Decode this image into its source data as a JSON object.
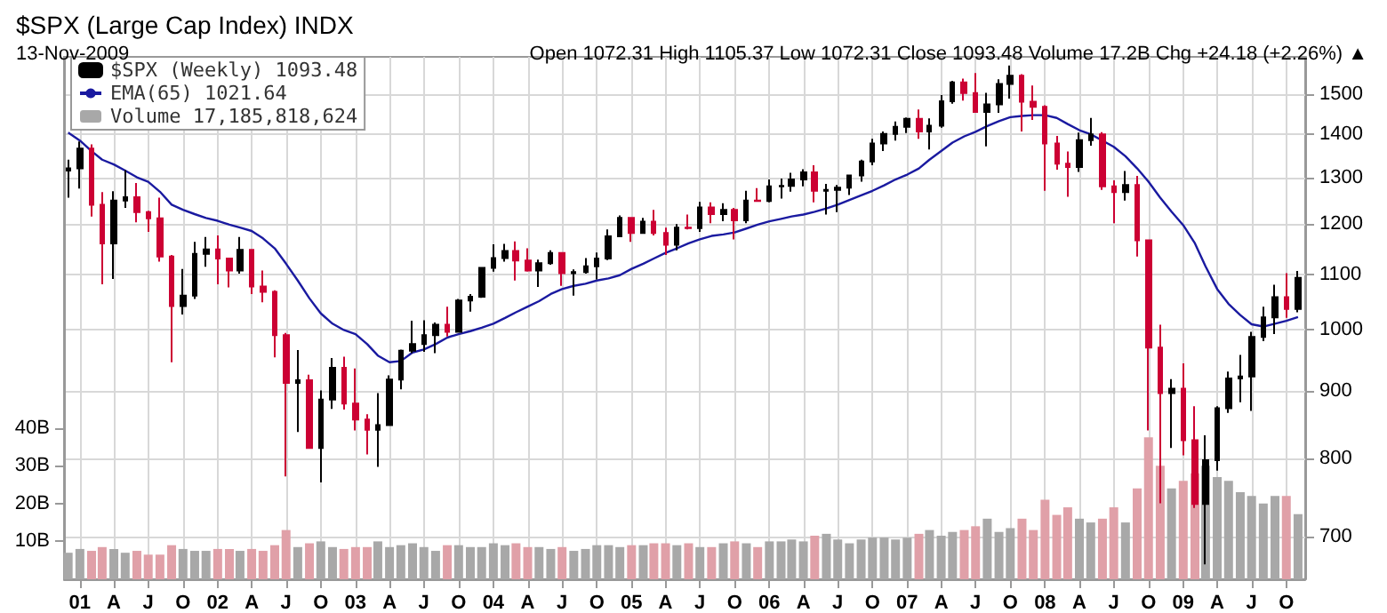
{
  "chart_data": {
    "type": "candlestick",
    "title": "$SPX (Large Cap Index) INDX",
    "subtitle": "13-Nov-2009",
    "annotations": [
      "Open 1072.31 High 1105.37 Low 1072.31 Close 1093.48 Volume 17.2B Chg +24.18 (+2.26%) ▲"
    ],
    "x": [
      "2000-12",
      "2001-01",
      "2001-02",
      "2001-03",
      "2001-04",
      "2001-05",
      "2001-06",
      "2001-07",
      "2001-08",
      "2001-09",
      "2001-10",
      "2001-11",
      "2001-12",
      "2002-01",
      "2002-02",
      "2002-03",
      "2002-04",
      "2002-05",
      "2002-06",
      "2002-07",
      "2002-08",
      "2002-09",
      "2002-10",
      "2002-11",
      "2002-12",
      "2003-01",
      "2003-02",
      "2003-03",
      "2003-04",
      "2003-05",
      "2003-06",
      "2003-07",
      "2003-08",
      "2003-09",
      "2003-10",
      "2003-11",
      "2003-12",
      "2004-01",
      "2004-02",
      "2004-03",
      "2004-04",
      "2004-05",
      "2004-06",
      "2004-07",
      "2004-08",
      "2004-09",
      "2004-10",
      "2004-11",
      "2004-12",
      "2005-01",
      "2005-02",
      "2005-03",
      "2005-04",
      "2005-05",
      "2005-06",
      "2005-07",
      "2005-08",
      "2005-09",
      "2005-10",
      "2005-11",
      "2005-12",
      "2006-01",
      "2006-02",
      "2006-03",
      "2006-04",
      "2006-05",
      "2006-06",
      "2006-07",
      "2006-08",
      "2006-09",
      "2006-10",
      "2006-11",
      "2006-12",
      "2007-01",
      "2007-02",
      "2007-03",
      "2007-04",
      "2007-05",
      "2007-06",
      "2007-07",
      "2007-08",
      "2007-09",
      "2007-10",
      "2007-11",
      "2007-12",
      "2008-01",
      "2008-02",
      "2008-03",
      "2008-04",
      "2008-05",
      "2008-06",
      "2008-07",
      "2008-08",
      "2008-09",
      "2008-10",
      "2008-11",
      "2008-12",
      "2009-01",
      "2009-02",
      "2009-03",
      "2009-04",
      "2009-05",
      "2009-06",
      "2009-07",
      "2009-08",
      "2009-09",
      "2009-10",
      "2009-11"
    ],
    "series": [
      {
        "name": "$SPX (Weekly) 1093.48",
        "ohlc": [
          [
            1315,
            1340,
            1255,
            1320
          ],
          [
            1320,
            1383,
            1275,
            1366
          ],
          [
            1366,
            1376,
            1215,
            1240
          ],
          [
            1240,
            1267,
            1081,
            1160
          ],
          [
            1160,
            1269,
            1091,
            1249
          ],
          [
            1249,
            1316,
            1233,
            1256
          ],
          [
            1256,
            1287,
            1203,
            1224
          ],
          [
            1224,
            1227,
            1183,
            1211
          ],
          [
            1211,
            1255,
            1124,
            1134
          ],
          [
            1134,
            1137,
            945,
            1041
          ],
          [
            1041,
            1110,
            1026,
            1060
          ],
          [
            1060,
            1163,
            1054,
            1139
          ],
          [
            1139,
            1173,
            1114,
            1148
          ],
          [
            1148,
            1176,
            1081,
            1130
          ],
          [
            1130,
            1131,
            1075,
            1107
          ],
          [
            1107,
            1173,
            1101,
            1147
          ],
          [
            1147,
            1147,
            1063,
            1077
          ],
          [
            1077,
            1107,
            1048,
            1067
          ],
          [
            1067,
            1070,
            953,
            990
          ],
          [
            990,
            994,
            776,
            912
          ],
          [
            912,
            965,
            838,
            916
          ],
          [
            916,
            925,
            815,
            815
          ],
          [
            815,
            900,
            768,
            886
          ],
          [
            886,
            952,
            872,
            936
          ],
          [
            936,
            954,
            871,
            880
          ],
          [
            880,
            935,
            840,
            856
          ],
          [
            856,
            864,
            806,
            841
          ],
          [
            841,
            896,
            789,
            848
          ],
          [
            848,
            924,
            847,
            917
          ],
          [
            917,
            966,
            902,
            964
          ],
          [
            964,
            1015,
            960,
            975
          ],
          [
            975,
            1016,
            962,
            990
          ],
          [
            990,
            1012,
            960,
            1008
          ],
          [
            1008,
            1040,
            988,
            996
          ],
          [
            996,
            1054,
            996,
            1051
          ],
          [
            1051,
            1063,
            1031,
            1058
          ],
          [
            1058,
            1112,
            1056,
            1112
          ],
          [
            1112,
            1158,
            1105,
            1131
          ],
          [
            1131,
            1159,
            1124,
            1145
          ],
          [
            1145,
            1164,
            1088,
            1126
          ],
          [
            1126,
            1150,
            1105,
            1107
          ],
          [
            1107,
            1128,
            1076,
            1121
          ],
          [
            1121,
            1146,
            1118,
            1141
          ],
          [
            1141,
            1141,
            1078,
            1102
          ],
          [
            1102,
            1109,
            1060,
            1104
          ],
          [
            1104,
            1131,
            1101,
            1115
          ],
          [
            1115,
            1142,
            1090,
            1130
          ],
          [
            1130,
            1188,
            1127,
            1174
          ],
          [
            1174,
            1217,
            1173,
            1212
          ],
          [
            1212,
            1212,
            1163,
            1181
          ],
          [
            1181,
            1212,
            1180,
            1204
          ],
          [
            1204,
            1229,
            1176,
            1181
          ],
          [
            1181,
            1192,
            1137,
            1157
          ],
          [
            1157,
            1199,
            1146,
            1192
          ],
          [
            1192,
            1219,
            1188,
            1191
          ],
          [
            1191,
            1246,
            1183,
            1234
          ],
          [
            1234,
            1245,
            1201,
            1220
          ],
          [
            1220,
            1243,
            1205,
            1229
          ],
          [
            1229,
            1233,
            1168,
            1207
          ],
          [
            1207,
            1270,
            1201,
            1249
          ],
          [
            1249,
            1276,
            1246,
            1248
          ],
          [
            1248,
            1295,
            1245,
            1280
          ],
          [
            1280,
            1297,
            1253,
            1281
          ],
          [
            1281,
            1310,
            1268,
            1295
          ],
          [
            1295,
            1318,
            1280,
            1311
          ],
          [
            1311,
            1327,
            1245,
            1270
          ],
          [
            1270,
            1285,
            1219,
            1272
          ],
          [
            1272,
            1283,
            1224,
            1277
          ],
          [
            1277,
            1306,
            1261,
            1304
          ],
          [
            1304,
            1340,
            1290,
            1336
          ],
          [
            1336,
            1389,
            1327,
            1378
          ],
          [
            1378,
            1407,
            1360,
            1401
          ],
          [
            1401,
            1431,
            1385,
            1418
          ],
          [
            1418,
            1441,
            1403,
            1438
          ],
          [
            1438,
            1461,
            1389,
            1407
          ],
          [
            1407,
            1439,
            1364,
            1421
          ],
          [
            1421,
            1498,
            1416,
            1482
          ],
          [
            1482,
            1535,
            1476,
            1531
          ],
          [
            1531,
            1541,
            1484,
            1503
          ],
          [
            1503,
            1556,
            1454,
            1455
          ],
          [
            1455,
            1504,
            1371,
            1474
          ],
          [
            1474,
            1539,
            1453,
            1527
          ],
          [
            1527,
            1576,
            1489,
            1549
          ],
          [
            1549,
            1553,
            1407,
            1481
          ],
          [
            1481,
            1523,
            1435,
            1468
          ],
          [
            1468,
            1472,
            1270,
            1378
          ],
          [
            1378,
            1396,
            1317,
            1331
          ],
          [
            1331,
            1359,
            1257,
            1323
          ],
          [
            1323,
            1404,
            1312,
            1386
          ],
          [
            1386,
            1440,
            1373,
            1400
          ],
          [
            1400,
            1405,
            1272,
            1280
          ],
          [
            1280,
            1293,
            1201,
            1267
          ],
          [
            1267,
            1314,
            1249,
            1283
          ],
          [
            1283,
            1303,
            1134,
            1166
          ],
          [
            1166,
            1168,
            840,
            969
          ],
          [
            969,
            1008,
            741,
            896
          ],
          [
            896,
            918,
            815,
            903
          ],
          [
            903,
            943,
            805,
            826
          ],
          [
            826,
            876,
            735,
            740
          ],
          [
            740,
            833,
            667,
            798
          ],
          [
            798,
            876,
            784,
            873
          ],
          [
            873,
            930,
            866,
            919
          ],
          [
            919,
            957,
            882,
            922
          ],
          [
            922,
            996,
            869,
            987
          ],
          [
            987,
            1040,
            980,
            1021
          ],
          [
            1021,
            1080,
            992,
            1057
          ],
          [
            1057,
            1102,
            1020,
            1036
          ],
          [
            1036,
            1106,
            1030,
            1093
          ]
        ],
        "colors": [
          "#000000",
          "#000000",
          "#cc0033",
          "#cc0033",
          "#000000",
          "#000000",
          "#cc0033",
          "#cc0033",
          "#cc0033",
          "#cc0033",
          "#000000",
          "#000000",
          "#000000",
          "#cc0033",
          "#cc0033",
          "#000000",
          "#cc0033",
          "#cc0033",
          "#cc0033",
          "#cc0033",
          "#000000",
          "#cc0033",
          "#000000",
          "#000000",
          "#cc0033",
          "#cc0033",
          "#cc0033",
          "#000000",
          "#000000",
          "#000000",
          "#000000",
          "#000000",
          "#000000",
          "#cc0033",
          "#000000",
          "#000000",
          "#000000",
          "#000000",
          "#000000",
          "#cc0033",
          "#cc0033",
          "#000000",
          "#000000",
          "#cc0033",
          "#000000",
          "#000000",
          "#000000",
          "#000000",
          "#000000",
          "#cc0033",
          "#000000",
          "#cc0033",
          "#cc0033",
          "#000000",
          "#cc0033",
          "#000000",
          "#cc0033",
          "#000000",
          "#cc0033",
          "#000000",
          "#cc0033",
          "#000000",
          "#000000",
          "#000000",
          "#000000",
          "#cc0033",
          "#000000",
          "#000000",
          "#000000",
          "#000000",
          "#000000",
          "#000000",
          "#000000",
          "#000000",
          "#cc0033",
          "#000000",
          "#000000",
          "#000000",
          "#cc0033",
          "#cc0033",
          "#000000",
          "#000000",
          "#000000",
          "#cc0033",
          "#cc0033",
          "#cc0033",
          "#cc0033",
          "#cc0033",
          "#000000",
          "#000000",
          "#cc0033",
          "#cc0033",
          "#000000",
          "#cc0033",
          "#cc0033",
          "#cc0033",
          "#000000",
          "#cc0033",
          "#cc0033",
          "#000000",
          "#000000",
          "#000000",
          "#000000",
          "#000000",
          "#000000",
          "#000000",
          "#cc0033",
          "#000000"
        ]
      },
      {
        "type": "line",
        "name": "EMA(65) 1021.64",
        "color": "#1a1aa0",
        "values": [
          1404,
          1385,
          1360,
          1340,
          1329,
          1315,
          1300,
          1290,
          1268,
          1240,
          1229,
          1220,
          1212,
          1206,
          1198,
          1192,
          1185,
          1170,
          1150,
          1120,
          1088,
          1055,
          1028,
          1010,
          999,
          992,
          975,
          956,
          945,
          947,
          961,
          966,
          975,
          986,
          992,
          997,
          1003,
          1010,
          1020,
          1030,
          1040,
          1050,
          1063,
          1072,
          1078,
          1082,
          1088,
          1092,
          1098,
          1110,
          1120,
          1130,
          1141,
          1150,
          1160,
          1168,
          1175,
          1178,
          1182,
          1190,
          1198,
          1205,
          1210,
          1215,
          1219,
          1225,
          1232,
          1240,
          1250,
          1260,
          1270,
          1282,
          1295,
          1306,
          1320,
          1340,
          1360,
          1380,
          1395,
          1406,
          1420,
          1432,
          1442,
          1445,
          1447,
          1447,
          1440,
          1425,
          1410,
          1400,
          1385,
          1370,
          1348,
          1320,
          1290,
          1255,
          1225,
          1197,
          1160,
          1115,
          1072,
          1045,
          1025,
          1009,
          1005,
          1010,
          1015,
          1021.64
        ]
      },
      {
        "type": "bar",
        "name": "Volume 17,185,818,624",
        "axis": "y2",
        "color": "#a8a8a8",
        "values": [
          7,
          8,
          7.5,
          8.5,
          8,
          7,
          7.5,
          6.5,
          6.5,
          9,
          8,
          7.5,
          7.5,
          8,
          8,
          7.5,
          8,
          7.5,
          9,
          13,
          8.5,
          9.5,
          10,
          8.5,
          8,
          8.5,
          8.5,
          10,
          8.5,
          9,
          9.5,
          8.5,
          7.5,
          9,
          9,
          8.5,
          8.5,
          9.5,
          9,
          9.5,
          8.5,
          8.5,
          8,
          8.5,
          7.5,
          8,
          9,
          9,
          8.5,
          9,
          9,
          9.5,
          9.5,
          9,
          9.5,
          8.5,
          8.5,
          9.5,
          10,
          9.5,
          8.5,
          10,
          10,
          10.5,
          10,
          11.5,
          12,
          10.5,
          9.5,
          10.5,
          11,
          11,
          10.5,
          11,
          12,
          13,
          11.5,
          12.5,
          13,
          14,
          16,
          12.5,
          13.5,
          16,
          13,
          21,
          17,
          19,
          16,
          15,
          16,
          19,
          15,
          24,
          37.5,
          30,
          24,
          26,
          28,
          30,
          27,
          26,
          23,
          22,
          20,
          22,
          22,
          17.2
        ],
        "colors": [
          "#a8a8a8",
          "#a8a8a8",
          "#e0a0a8",
          "#e0a0a8",
          "#a8a8a8",
          "#a8a8a8",
          "#e0a0a8",
          "#e0a0a8",
          "#e0a0a8",
          "#e0a0a8",
          "#a8a8a8",
          "#a8a8a8",
          "#a8a8a8",
          "#e0a0a8",
          "#e0a0a8",
          "#a8a8a8",
          "#e0a0a8",
          "#e0a0a8",
          "#e0a0a8",
          "#e0a0a8",
          "#a8a8a8",
          "#e0a0a8",
          "#a8a8a8",
          "#a8a8a8",
          "#e0a0a8",
          "#e0a0a8",
          "#e0a0a8",
          "#a8a8a8",
          "#a8a8a8",
          "#a8a8a8",
          "#a8a8a8",
          "#a8a8a8",
          "#a8a8a8",
          "#e0a0a8",
          "#a8a8a8",
          "#a8a8a8",
          "#a8a8a8",
          "#a8a8a8",
          "#a8a8a8",
          "#e0a0a8",
          "#e0a0a8",
          "#a8a8a8",
          "#a8a8a8",
          "#e0a0a8",
          "#a8a8a8",
          "#a8a8a8",
          "#a8a8a8",
          "#a8a8a8",
          "#a8a8a8",
          "#e0a0a8",
          "#a8a8a8",
          "#e0a0a8",
          "#e0a0a8",
          "#a8a8a8",
          "#e0a0a8",
          "#a8a8a8",
          "#e0a0a8",
          "#a8a8a8",
          "#e0a0a8",
          "#a8a8a8",
          "#e0a0a8",
          "#a8a8a8",
          "#a8a8a8",
          "#a8a8a8",
          "#a8a8a8",
          "#e0a0a8",
          "#a8a8a8",
          "#a8a8a8",
          "#a8a8a8",
          "#a8a8a8",
          "#a8a8a8",
          "#a8a8a8",
          "#a8a8a8",
          "#a8a8a8",
          "#e0a0a8",
          "#a8a8a8",
          "#a8a8a8",
          "#a8a8a8",
          "#e0a0a8",
          "#e0a0a8",
          "#a8a8a8",
          "#a8a8a8",
          "#a8a8a8",
          "#e0a0a8",
          "#e0a0a8",
          "#e0a0a8",
          "#e0a0a8",
          "#e0a0a8",
          "#a8a8a8",
          "#a8a8a8",
          "#e0a0a8",
          "#e0a0a8",
          "#a8a8a8",
          "#e0a0a8",
          "#e0a0a8",
          "#e0a0a8",
          "#a8a8a8",
          "#e0a0a8",
          "#e0a0a8",
          "#a8a8a8",
          "#a8a8a8",
          "#a8a8a8",
          "#a8a8a8",
          "#a8a8a8",
          "#a8a8a8",
          "#a8a8a8",
          "#e0a0a8",
          "#a8a8a8"
        ]
      }
    ],
    "xlim": [
      "2000-11-20",
      "2009-11-20"
    ],
    "xticks": [
      {
        "value": "2001-01-01",
        "label": "01"
      },
      {
        "value": "2001-04-01",
        "label": "A"
      },
      {
        "value": "2001-07-01",
        "label": "J"
      },
      {
        "value": "2001-10-01",
        "label": "O"
      },
      {
        "value": "2002-01-01",
        "label": "02"
      },
      {
        "value": "2002-04-01",
        "label": "A"
      },
      {
        "value": "2002-07-01",
        "label": "J"
      },
      {
        "value": "2002-10-01",
        "label": "O"
      },
      {
        "value": "2003-01-01",
        "label": "03"
      },
      {
        "value": "2003-04-01",
        "label": "A"
      },
      {
        "value": "2003-07-01",
        "label": "J"
      },
      {
        "value": "2003-10-01",
        "label": "O"
      },
      {
        "value": "2004-01-01",
        "label": "04"
      },
      {
        "value": "2004-04-01",
        "label": "A"
      },
      {
        "value": "2004-07-01",
        "label": "J"
      },
      {
        "value": "2004-10-01",
        "label": "O"
      },
      {
        "value": "2005-01-01",
        "label": "05"
      },
      {
        "value": "2005-04-01",
        "label": "A"
      },
      {
        "value": "2005-07-01",
        "label": "J"
      },
      {
        "value": "2005-10-01",
        "label": "O"
      },
      {
        "value": "2006-01-01",
        "label": "06"
      },
      {
        "value": "2006-04-01",
        "label": "A"
      },
      {
        "value": "2006-07-01",
        "label": "J"
      },
      {
        "value": "2006-10-01",
        "label": "O"
      },
      {
        "value": "2007-01-01",
        "label": "07"
      },
      {
        "value": "2007-04-01",
        "label": "A"
      },
      {
        "value": "2007-07-01",
        "label": "J"
      },
      {
        "value": "2007-10-01",
        "label": "O"
      },
      {
        "value": "2008-01-01",
        "label": "08"
      },
      {
        "value": "2008-04-01",
        "label": "A"
      },
      {
        "value": "2008-07-01",
        "label": "J"
      },
      {
        "value": "2008-10-01",
        "label": "O"
      },
      {
        "value": "2009-01-01",
        "label": "09"
      },
      {
        "value": "2009-04-01",
        "label": "A"
      },
      {
        "value": "2009-07-01",
        "label": "J"
      },
      {
        "value": "2009-10-01",
        "label": "O"
      }
    ],
    "ylim": [
      650,
      1600
    ],
    "yticks": [
      700,
      800,
      900,
      1000,
      1100,
      1200,
      1300,
      1400,
      1500
    ],
    "log": "y",
    "y2lim": [
      0,
      138
    ],
    "y2ticks": [
      {
        "value": 10,
        "label": "10B"
      },
      {
        "value": 20,
        "label": "20B"
      },
      {
        "value": 30,
        "label": "30B"
      },
      {
        "value": 40,
        "label": "40B"
      }
    ],
    "grid": true,
    "legend": "top left"
  }
}
